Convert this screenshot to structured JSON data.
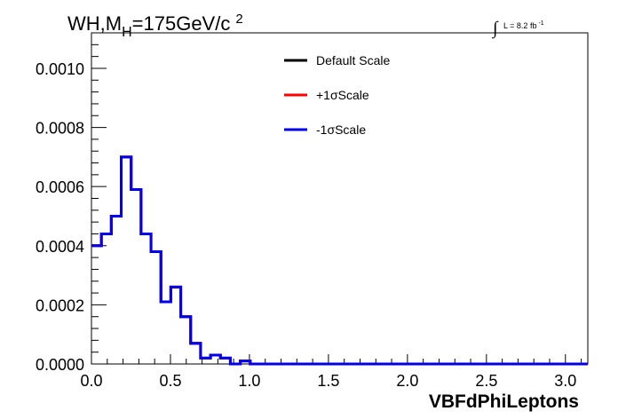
{
  "chart_data": {
    "type": "line",
    "title_main": "WH,M",
    "title_sub": "H",
    "title_rest": "=175GeV/c",
    "title_sup": "2",
    "lumi_integral": "∫",
    "lumi_text": "L = 8.2 fb",
    "lumi_sup": "-1",
    "xlabel": "VBFdPhiLeptons",
    "ylabel": "",
    "xlim": [
      0,
      3.1416
    ],
    "ylim": [
      0,
      0.00112
    ],
    "x_ticks": [
      "0.0",
      "0.5",
      "1.0",
      "1.5",
      "2.0",
      "2.5",
      "3.0"
    ],
    "x_tick_values": [
      0,
      0.5,
      1.0,
      1.5,
      2.0,
      2.5,
      3.0
    ],
    "y_ticks": [
      "0.0000",
      "0.0002",
      "0.0004",
      "0.0006",
      "0.0008",
      "0.0010"
    ],
    "y_tick_values": [
      0,
      0.0002,
      0.0004,
      0.0006,
      0.0008,
      0.001
    ],
    "bin_width": 0.0628,
    "series": [
      {
        "name": "Default Scale",
        "color": "#000000",
        "values": [
          0.0004,
          0.00044,
          0.0005,
          0.0007,
          0.00059,
          0.00044,
          0.00038,
          0.00021,
          0.00026,
          0.00016,
          7e-05,
          2e-05,
          3e-05,
          2e-05,
          0.0,
          1e-05,
          0,
          0,
          0,
          0,
          0,
          0,
          0,
          0,
          0,
          0,
          0,
          0,
          0,
          0,
          0,
          0,
          0,
          0,
          0,
          0,
          0,
          0,
          0,
          0,
          0,
          0,
          0,
          0,
          0,
          0,
          0,
          0,
          0,
          0
        ]
      },
      {
        "name": "+1σScale",
        "color": "#ff0000",
        "values": [
          0.0004,
          0.00044,
          0.0005,
          0.0007,
          0.00059,
          0.00044,
          0.00038,
          0.00021,
          0.00026,
          0.00016,
          7e-05,
          2e-05,
          3e-05,
          2e-05,
          0.0,
          1e-05,
          0,
          0,
          0,
          0,
          0,
          0,
          0,
          0,
          0,
          0,
          0,
          0,
          0,
          0,
          0,
          0,
          0,
          0,
          0,
          0,
          0,
          0,
          0,
          0,
          0,
          0,
          0,
          0,
          0,
          0,
          0,
          0,
          0,
          0
        ]
      },
      {
        "name": "-1σScale",
        "color": "#0000ee",
        "values": [
          0.0004,
          0.00044,
          0.0005,
          0.0007,
          0.00059,
          0.00044,
          0.00038,
          0.00021,
          0.00026,
          0.00016,
          7e-05,
          2e-05,
          3e-05,
          2e-05,
          0.0,
          1e-05,
          0,
          0,
          0,
          0,
          0,
          0,
          0,
          0,
          0,
          0,
          0,
          0,
          0,
          0,
          0,
          0,
          0,
          0,
          0,
          0,
          0,
          0,
          0,
          0,
          0,
          0,
          0,
          0,
          0,
          0,
          0,
          0,
          0,
          0
        ]
      }
    ],
    "legend": [
      "Default Scale",
      "+1σScale",
      "-1σScale"
    ]
  }
}
